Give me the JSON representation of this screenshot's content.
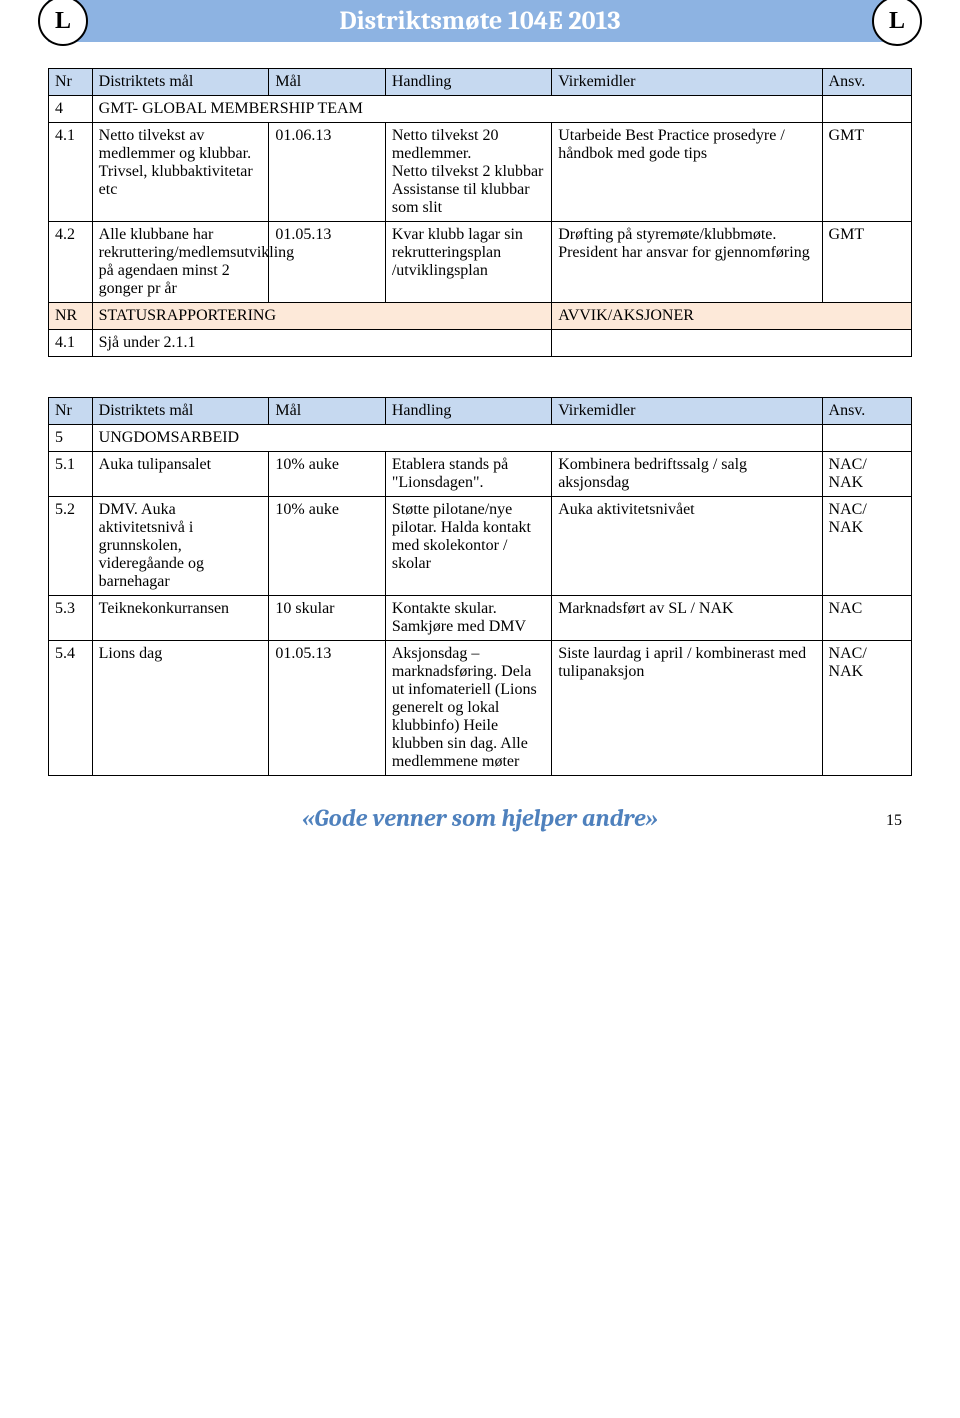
{
  "header": {
    "title": "Distriktsmøte 104E 2013"
  },
  "table1": {
    "head": {
      "nr": "Nr",
      "goal": "Distriktets mål",
      "maal": "Mål",
      "hand": "Handling",
      "virk": "Virkemidler",
      "ansv": "Ansv."
    },
    "section": {
      "nr": "4",
      "text": "GMT- GLOBAL MEMBERSHIP TEAM"
    },
    "rows": [
      {
        "nr": "4.1",
        "goal": "Netto tilvekst av medlemmer og klubbar. Trivsel, klubbaktivitetar etc",
        "maal": "01.06.13",
        "hand": "Netto tilvekst 20 medlemmer.\nNetto tilvekst 2 klubbar\nAssistanse til klubbar som slit",
        "virk": "Utarbeide Best Practice prosedyre / håndbok med gode tips",
        "ansv": "GMT"
      },
      {
        "nr": "4.2",
        "goal": "Alle klubbane har rekruttering/medlemsutvikling på agendaen minst 2 gonger pr år",
        "maal": "01.05.13",
        "hand": "Kvar klubb lagar sin rekrutteringsplan /utviklingsplan",
        "virk": "Drøfting på styremøte/klubbmøte. President har ansvar for gjennomføring",
        "ansv": "GMT"
      }
    ],
    "status": {
      "nr": "NR",
      "label": "STATUSRAPPORTERING",
      "avvik": "AVVIK/AKSJONER"
    },
    "statusRow": {
      "nr": "4.1",
      "text": "Sjå under 2.1.1"
    }
  },
  "table2": {
    "head": {
      "nr": "Nr",
      "goal": "Distriktets mål",
      "maal": "Mål",
      "hand": "Handling",
      "virk": "Virkemidler",
      "ansv": "Ansv."
    },
    "section": {
      "nr": "5",
      "text": "UNGDOMSARBEID"
    },
    "rows": [
      {
        "nr": "5.1",
        "goal": "Auka tulipansalet",
        "maal": "10% auke",
        "hand": "Etablera stands på \"Lionsdagen\".",
        "virk": "Kombinera bedriftssalg / salg aksjonsdag",
        "ansv": "NAC/\nNAK"
      },
      {
        "nr": "5.2",
        "goal": "DMV. Auka aktivitetsnivå i grunnskolen, videregåande og barnehagar",
        "maal": "10% auke",
        "hand": "Støtte pilotane/nye pilotar. Halda kontakt med skolekontor / skolar",
        "virk": "Auka aktivitetsnivået",
        "ansv": "NAC/\nNAK"
      },
      {
        "nr": "5.3",
        "goal": "Teiknekonkurransen",
        "maal": "10 skular",
        "hand": "Kontakte skular. Samkjøre med DMV",
        "virk": "Marknadsført av SL / NAK",
        "ansv": "NAC"
      },
      {
        "nr": "5.4",
        "goal": "Lions dag",
        "maal": "01.05.13",
        "hand": "Aksjonsdag – marknadsføring. Dela ut infomateriell (Lions generelt og lokal klubbinfo) Heile klubben sin dag. Alle medlemmene møter",
        "virk": "Siste laurdag i april / kombinerast med tulipanaksjon",
        "ansv": "NAC/\nNAK"
      }
    ]
  },
  "footer": {
    "text": "«Gode venner som hjelper andre»",
    "page": "15"
  },
  "logoGlyph": "L"
}
